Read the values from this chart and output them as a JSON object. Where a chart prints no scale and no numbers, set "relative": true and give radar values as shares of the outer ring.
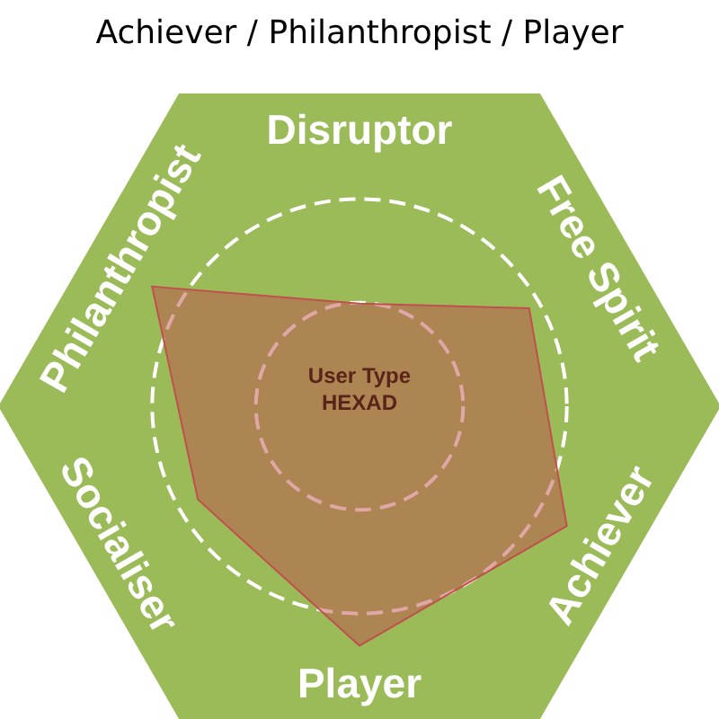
{
  "chart_data": {
    "type": "radar",
    "title": "Achiever / Philanthropist / Player",
    "categories": [
      "Disruptor",
      "Free Spirit",
      "Achiever",
      "Player",
      "Socialiser",
      "Philanthropist"
    ],
    "series": [
      {
        "color": "#c0504d",
        "values": [
          0.33,
          0.63,
          0.77,
          0.77,
          0.6,
          0.77
        ]
      }
    ],
    "relative": true,
    "grid": true,
    "annotations": [
      "User Type HEXAD"
    ]
  }
}
